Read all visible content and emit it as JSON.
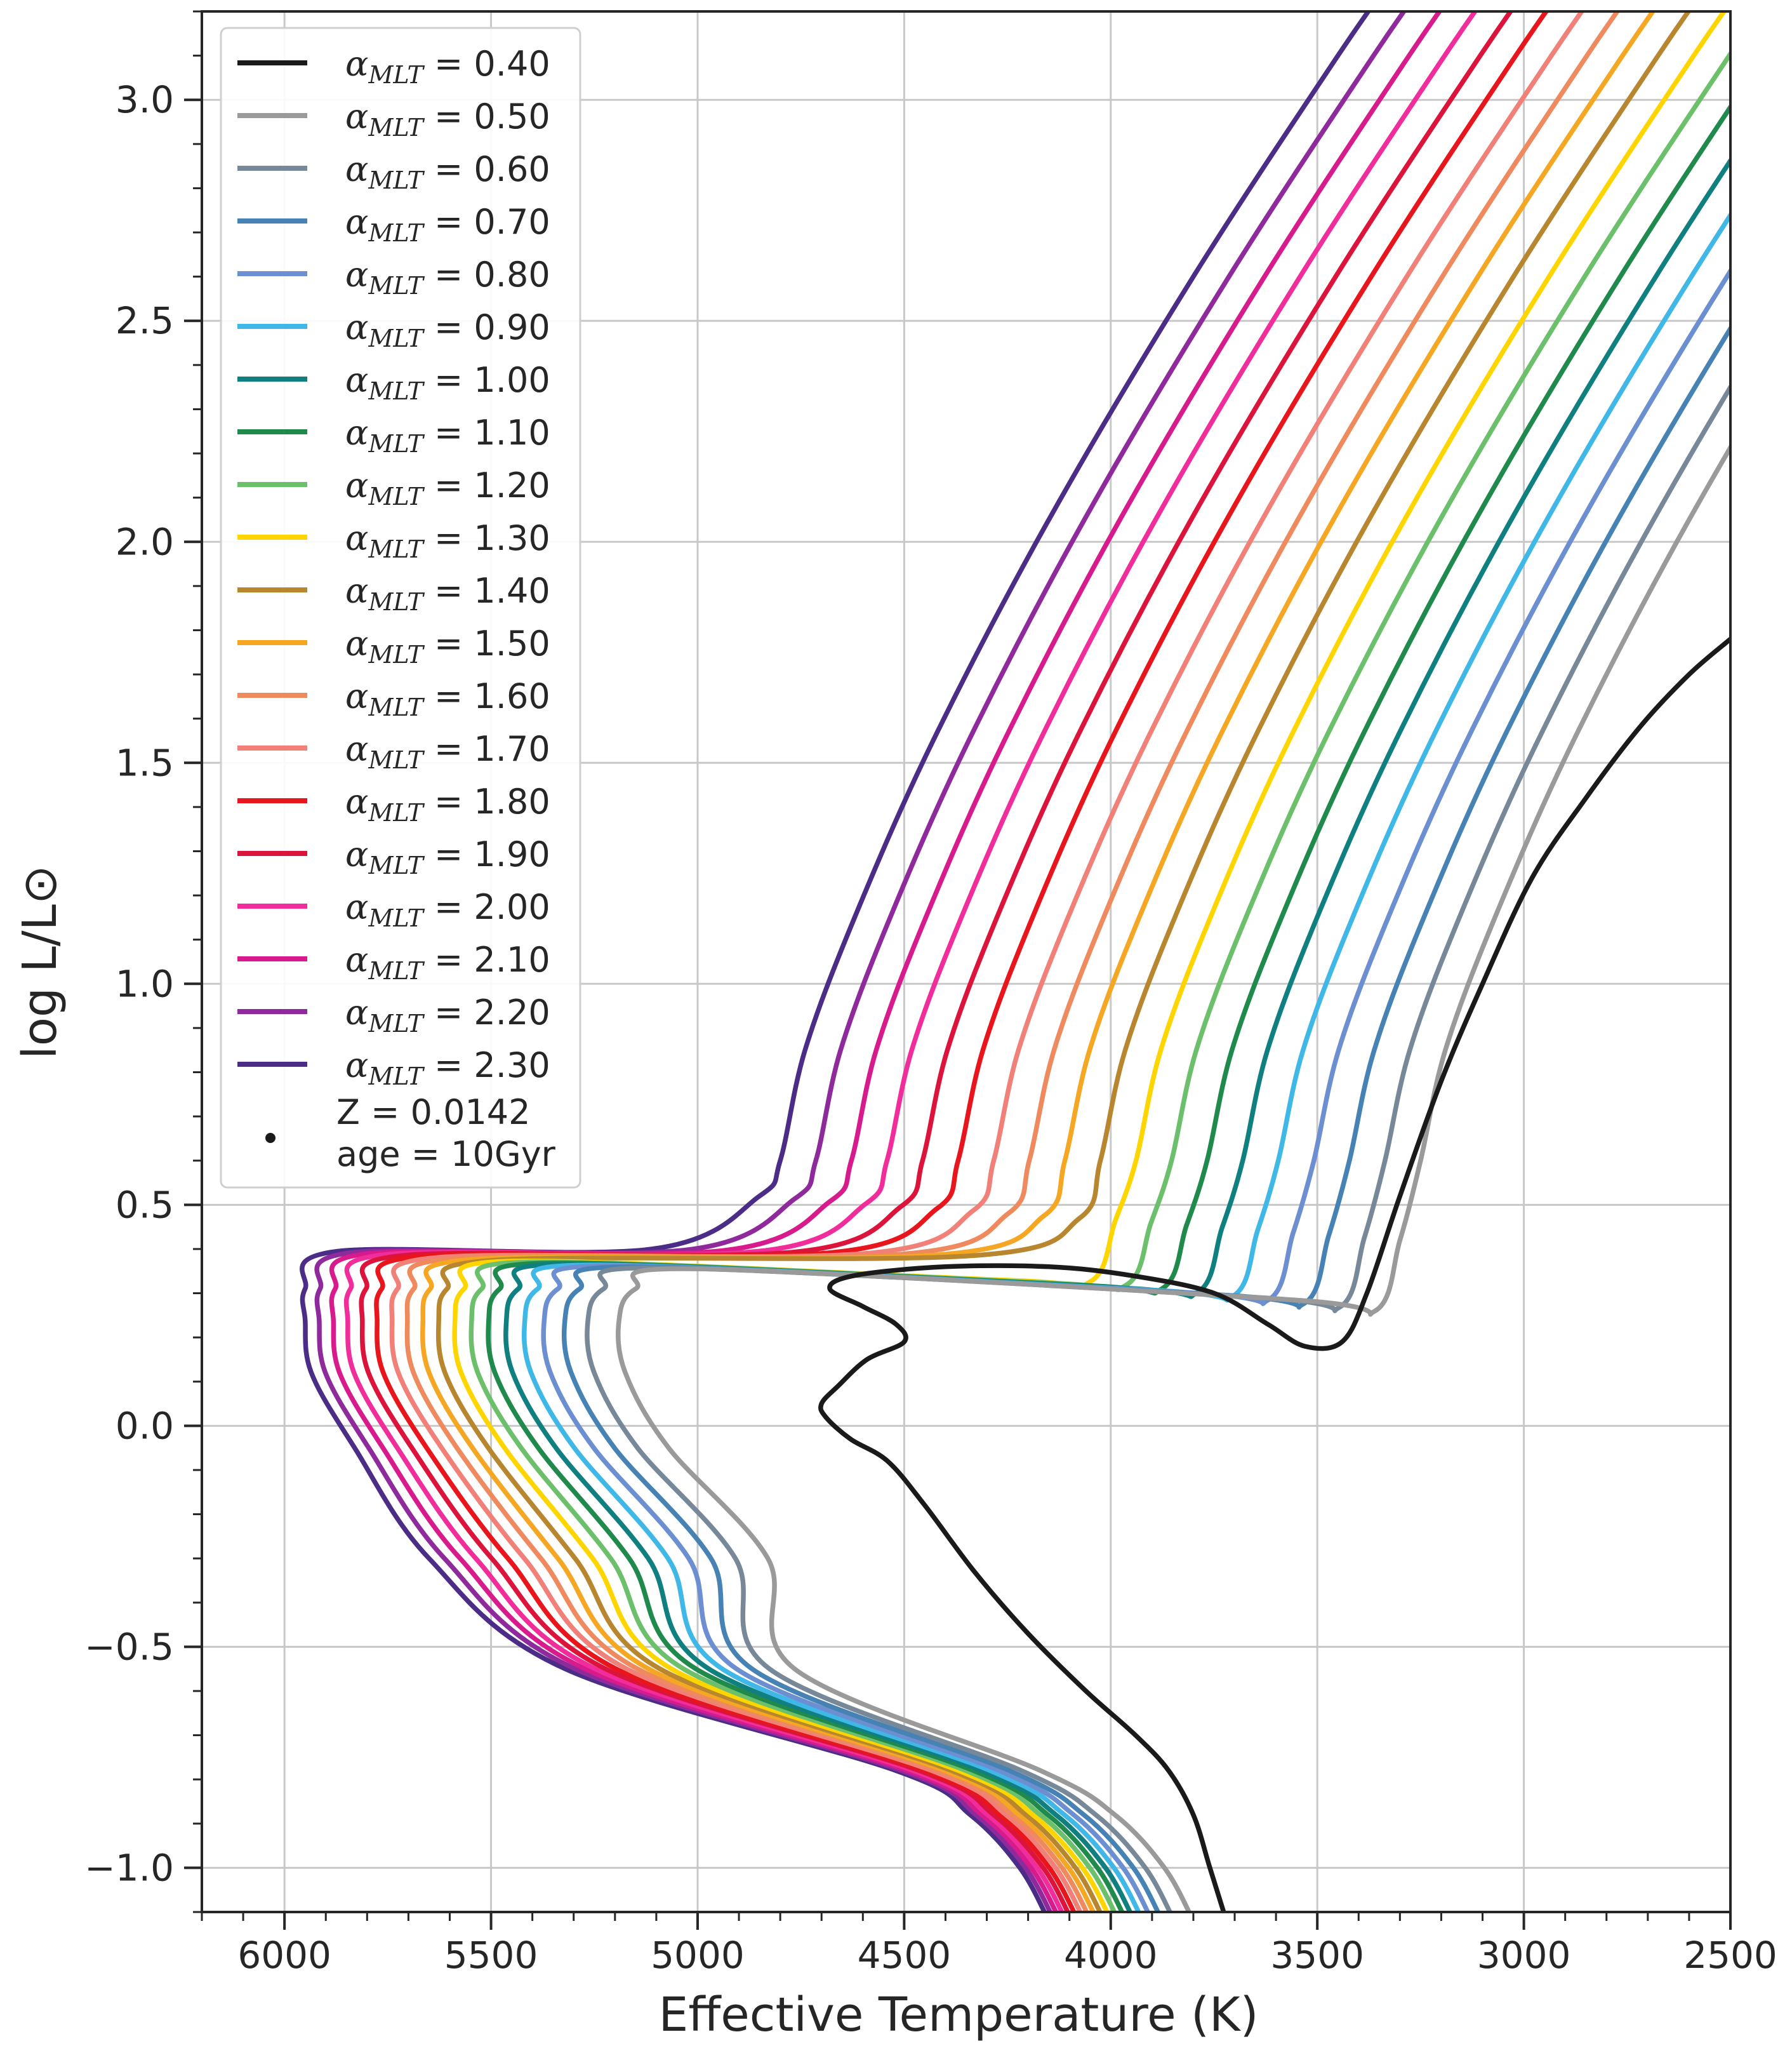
{
  "chart_data": {
    "type": "line",
    "xlabel": "Effective Temperature (K)",
    "ylabel": "log L/L⊙",
    "xlim": [
      6200,
      2500
    ],
    "ylim": [
      -1.1,
      3.2
    ],
    "x_ticks": [
      6000,
      5500,
      5000,
      4500,
      4000,
      3500,
      3000,
      2500
    ],
    "x_tick_labels": [
      "6000",
      "5500",
      "5000",
      "4500",
      "4000",
      "3500",
      "3000",
      "2500"
    ],
    "y_ticks": [
      -1.0,
      -0.5,
      0.0,
      0.5,
      1.0,
      1.5,
      2.0,
      2.5,
      3.0
    ],
    "y_tick_labels": [
      "−1.0",
      "−0.5",
      "0.0",
      "0.5",
      "1.0",
      "1.5",
      "2.0",
      "2.5",
      "3.0"
    ],
    "grid": true,
    "legend_location": "upper-left",
    "legend_symbol": "α",
    "legend_subscript": "MLT",
    "series": [
      {
        "name": "0.40",
        "color": "#1a1a1a"
      },
      {
        "name": "0.50",
        "color": "#9a9a9a"
      },
      {
        "name": "0.60",
        "color": "#778899"
      },
      {
        "name": "0.70",
        "color": "#4682b4"
      },
      {
        "name": "0.80",
        "color": "#6b8fd0"
      },
      {
        "name": "0.90",
        "color": "#3fb8e8"
      },
      {
        "name": "1.00",
        "color": "#0f7f80"
      },
      {
        "name": "1.10",
        "color": "#1f8a4c"
      },
      {
        "name": "1.20",
        "color": "#6cc06c"
      },
      {
        "name": "1.30",
        "color": "#ffd500"
      },
      {
        "name": "1.40",
        "color": "#b8862f"
      },
      {
        "name": "1.50",
        "color": "#f5a623"
      },
      {
        "name": "1.60",
        "color": "#ee8a5e"
      },
      {
        "name": "1.70",
        "color": "#f08078"
      },
      {
        "name": "1.80",
        "color": "#e8161c"
      },
      {
        "name": "1.90",
        "color": "#dc143c"
      },
      {
        "name": "2.00",
        "color": "#f02d9a"
      },
      {
        "name": "2.10",
        "color": "#d81b8c"
      },
      {
        "name": "2.20",
        "color": "#8e2a9c"
      },
      {
        "name": "2.30",
        "color": "#4b2c86"
      }
    ],
    "black_track": {
      "name": "0.40",
      "points": [
        [
          3720,
          -1.12
        ],
        [
          3760,
          -1.0
        ],
        [
          3800,
          -0.88
        ],
        [
          3860,
          -0.78
        ],
        [
          3940,
          -0.7
        ],
        [
          4060,
          -0.6
        ],
        [
          4200,
          -0.47
        ],
        [
          4330,
          -0.33
        ],
        [
          4450,
          -0.18
        ],
        [
          4540,
          -0.08
        ],
        [
          4630,
          -0.03
        ],
        [
          4690,
          0.02
        ],
        [
          4700,
          0.05
        ],
        [
          4660,
          0.09
        ],
        [
          4590,
          0.15
        ],
        [
          4500,
          0.19
        ],
        [
          4520,
          0.23
        ],
        [
          4600,
          0.27
        ],
        [
          4680,
          0.31
        ],
        [
          4620,
          0.34
        ],
        [
          4400,
          0.36
        ],
        [
          4150,
          0.36
        ],
        [
          3950,
          0.34
        ],
        [
          3750,
          0.3
        ],
        [
          3620,
          0.23
        ],
        [
          3530,
          0.18
        ],
        [
          3440,
          0.19
        ],
        [
          3380,
          0.3
        ],
        [
          3300,
          0.52
        ],
        [
          3200,
          0.78
        ],
        [
          3100,
          1.0
        ],
        [
          2980,
          1.24
        ],
        [
          2850,
          1.42
        ],
        [
          2720,
          1.58
        ],
        [
          2600,
          1.7
        ],
        [
          2500,
          1.78
        ]
      ]
    },
    "legend_note": [
      "Z = 0.0142",
      "age = 10Gyr"
    ]
  }
}
